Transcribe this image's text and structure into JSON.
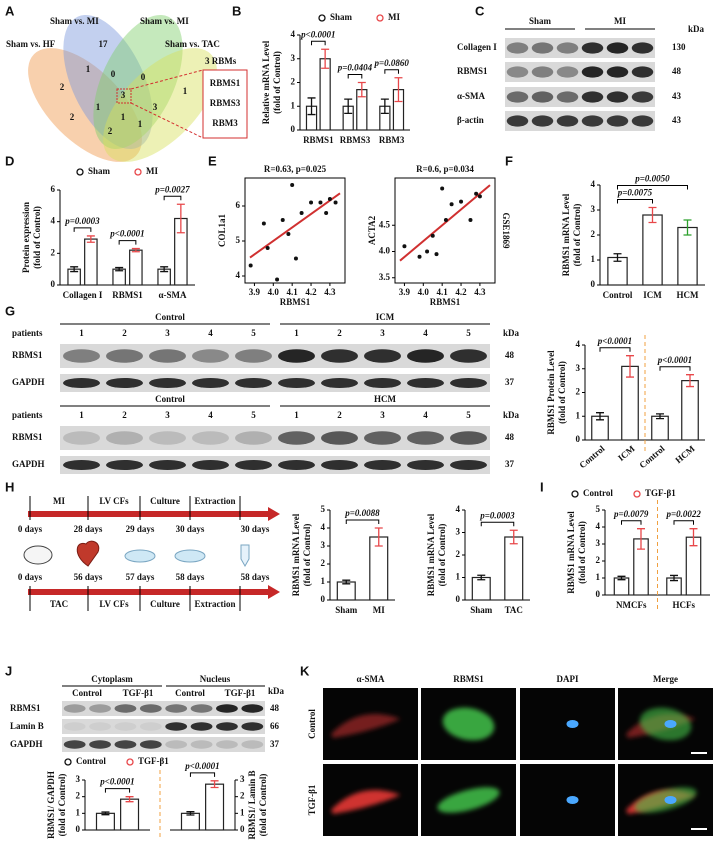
{
  "panel_labels": [
    "A",
    "B",
    "C",
    "D",
    "E",
    "F",
    "G",
    "H",
    "I",
    "J",
    "K"
  ],
  "venn": {
    "set_labels": [
      "Sham vs. MI",
      "Sham vs. MI",
      "Sham vs. HF",
      "Sham vs. TAC"
    ],
    "counts": [
      17,
      2,
      1,
      0,
      0,
      1,
      2,
      3,
      1,
      3,
      1,
      2,
      1
    ],
    "box_title": "3 RBMs",
    "genes": [
      "RBMS1",
      "RBMS3",
      "RBM3"
    ]
  },
  "blot_C": {
    "groups": [
      "Sham",
      "MI"
    ],
    "unit": "kDa",
    "rows": [
      {
        "label": "Collagen I",
        "kda": 130
      },
      {
        "label": "RBMS1",
        "kda": 48
      },
      {
        "label": "α-SMA",
        "kda": 43
      },
      {
        "label": "β-actin",
        "kda": 43
      }
    ]
  },
  "blot_G": {
    "unit": "kDa",
    "patients_label": "patients",
    "top": {
      "groups": [
        "Control",
        "ICM"
      ],
      "lanes": [
        1,
        2,
        3,
        4,
        5,
        1,
        2,
        3,
        4,
        5
      ]
    },
    "bottom": {
      "groups": [
        "Control",
        "HCM"
      ],
      "lanes": [
        1,
        2,
        3,
        4,
        5,
        1,
        2,
        3,
        4,
        5
      ]
    },
    "rows": [
      {
        "label": "RBMS1",
        "kda": 48
      },
      {
        "label": "GAPDH",
        "kda": 37
      }
    ]
  },
  "timeline": {
    "top": {
      "steps": [
        "MI",
        "LV CFs",
        "Culture",
        "Extraction"
      ],
      "days": [
        "0 days",
        "28 days",
        "29 days",
        "30 days",
        "30 days"
      ]
    },
    "bottom": {
      "steps": [
        "TAC",
        "LV CFs",
        "Culture",
        "Extraction"
      ],
      "days": [
        "0 days",
        "56 days",
        "57 days",
        "58 days",
        "58 days"
      ]
    }
  },
  "blot_J": {
    "compartments": [
      "Cytoplasm",
      "Nucleus"
    ],
    "conditions": [
      "Control",
      "TGF-β1",
      "Control",
      "TGF-β1"
    ],
    "unit": "kDa",
    "rows": [
      {
        "label": "RBMS1",
        "kda": 48
      },
      {
        "label": "Lamin B",
        "kda": 66
      },
      {
        "label": "GAPDH",
        "kda": 37
      }
    ]
  },
  "images_K": {
    "stains": [
      "α-SMA",
      "RBMS1",
      "DAPI",
      "Merge"
    ],
    "conditions": [
      "Control",
      "TGF-β1"
    ]
  },
  "chart_data": [
    {
      "type": "bar",
      "ylabel": [
        "Relative mRNA Level",
        "(fold of Control)"
      ],
      "categories": [
        "RBMS1",
        "RBMS3",
        "RBM3"
      ],
      "series": [
        {
          "name": "Sham",
          "color": "#111111",
          "values": [
            1.0,
            1.0,
            1.0
          ],
          "errors": [
            0.35,
            0.3,
            0.3
          ]
        },
        {
          "name": "MI",
          "color": "#e8474a",
          "values": [
            3.0,
            1.7,
            1.7
          ],
          "errors": [
            0.4,
            0.3,
            0.5
          ]
        }
      ],
      "ylim": [
        0,
        4
      ],
      "yticks": [
        0,
        1,
        2,
        3,
        4
      ],
      "annotations": [
        "p<0.0001",
        "p=0.0404",
        "p=0.0860"
      ]
    },
    {
      "type": "bar",
      "ylabel": [
        "Protein expression",
        "(fold of Control)"
      ],
      "categories": [
        "Collagen I",
        "RBMS1",
        "α-SMA"
      ],
      "series": [
        {
          "name": "Sham",
          "color": "#111111",
          "values": [
            1.0,
            1.0,
            1.0
          ],
          "errors": [
            0.15,
            0.1,
            0.15
          ]
        },
        {
          "name": "MI",
          "color": "#e8474a",
          "values": [
            2.9,
            2.2,
            4.2
          ],
          "errors": [
            0.2,
            0.1,
            0.9
          ]
        }
      ],
      "ylim": [
        0,
        6
      ],
      "yticks": [
        0,
        2,
        4,
        6
      ],
      "annotations": [
        "p=0.0003",
        "p<0.0001",
        "p=0.0027"
      ]
    },
    {
      "type": "scatter",
      "title": "R=0.63, p=0.025",
      "xlabel": "RBMS1",
      "ylabel": "COL1a1",
      "fit_color": "#d03030",
      "x": [
        3.88,
        3.95,
        3.97,
        4.02,
        4.05,
        4.08,
        4.1,
        4.12,
        4.15,
        4.2,
        4.25,
        4.28,
        4.3,
        4.33
      ],
      "y": [
        4.3,
        5.5,
        4.8,
        3.9,
        5.6,
        5.2,
        6.6,
        4.5,
        5.8,
        6.1,
        6.1,
        5.8,
        6.2,
        6.1
      ],
      "xlim": [
        3.85,
        4.38
      ],
      "xticks": [
        3.9,
        {
          "value": 4,
          "label": "4.0"
        },
        4.1,
        4.2,
        4.3
      ],
      "ylim": [
        3.8,
        6.8
      ],
      "yticks": [
        4,
        5,
        6
      ]
    },
    {
      "type": "scatter",
      "title": "R=0.6, p=0.034",
      "xlabel": "RBMS1",
      "ylabel": "ACTA2",
      "side_label": "GSE1869",
      "fit_color": "#d03030",
      "x": [
        3.9,
        3.98,
        4.02,
        4.05,
        4.07,
        4.1,
        4.12,
        4.15,
        4.2,
        4.25,
        4.28,
        4.3
      ],
      "y": [
        4.1,
        3.9,
        4.0,
        4.3,
        3.95,
        5.2,
        4.6,
        4.9,
        4.95,
        4.6,
        5.1,
        5.05
      ],
      "xlim": [
        3.85,
        4.38
      ],
      "xticks": [
        3.9,
        {
          "value": 4,
          "label": "4.0"
        },
        4.1,
        4.2,
        4.3
      ],
      "ylim": [
        3.4,
        5.4
      ],
      "yticks": [
        3.5,
        {
          "value": 4,
          "label": "4.0"
        },
        4.5
      ]
    },
    {
      "type": "bar",
      "ylabel": [
        "RBMS1 mRNA Level",
        "(fold of Control)"
      ],
      "categories": [
        "Control",
        "ICM",
        "HCM"
      ],
      "values": [
        1.1,
        2.8,
        2.3
      ],
      "errors": [
        0.15,
        0.3,
        0.3
      ],
      "colors": [
        "#111111",
        "#e8474a",
        "#2ca02c"
      ],
      "ylim": [
        0,
        4
      ],
      "yticks": [
        0,
        1,
        2,
        3,
        4
      ],
      "annotations": [
        "p=0.0075",
        "p=0.0050"
      ]
    },
    {
      "type": "bar",
      "ylabel": [
        "RBMS1 Protein Level",
        "(fold of Control)"
      ],
      "categories": [
        "Control",
        "ICM",
        "Control",
        "HCM"
      ],
      "values": [
        1.0,
        3.1,
        1.0,
        2.5
      ],
      "errors": [
        0.15,
        0.45,
        0.1,
        0.25
      ],
      "colors": [
        "#111111",
        "#e8474a",
        "#111111",
        "#e8474a"
      ],
      "ylim": [
        0,
        4
      ],
      "yticks": [
        0,
        1,
        2,
        3,
        4
      ],
      "annotations": [
        "p<0.0001",
        "p<0.0001"
      ]
    },
    {
      "type": "bar",
      "ylabel": [
        "RBMS1 mRNA Level",
        "(fold of Control)"
      ],
      "categories": [
        "Sham",
        "MI"
      ],
      "values": [
        1.0,
        3.5
      ],
      "errors": [
        0.1,
        0.5
      ],
      "colors": [
        "#111111",
        "#e8474a"
      ],
      "ylim": [
        0,
        5
      ],
      "yticks": [
        0,
        1,
        2,
        3,
        4,
        5
      ],
      "annotations": [
        "p=0.0088"
      ]
    },
    {
      "type": "bar",
      "ylabel": [
        "RBMS1 mRNA Level",
        "(fold of Control)"
      ],
      "categories": [
        "Sham",
        "TAC"
      ],
      "values": [
        1.0,
        2.8
      ],
      "errors": [
        0.1,
        0.3
      ],
      "colors": [
        "#111111",
        "#e8474a"
      ],
      "ylim": [
        0,
        4
      ],
      "yticks": [
        0,
        1,
        2,
        3,
        4
      ],
      "annotations": [
        "p=0.0003"
      ]
    },
    {
      "type": "bar",
      "ylabel": [
        "RBMS1 mRNA Level",
        "(fold of Control)"
      ],
      "categories": [
        "NMCFs",
        "HCFs"
      ],
      "series": [
        {
          "name": "Control",
          "color": "#111111",
          "values": [
            1.0,
            1.0
          ],
          "errors": [
            0.1,
            0.15
          ]
        },
        {
          "name": "TGF-β1",
          "color": "#e8474a",
          "values": [
            3.3,
            3.4
          ],
          "errors": [
            0.6,
            0.5
          ]
        }
      ],
      "ylim": [
        0,
        5
      ],
      "yticks": [
        0,
        1,
        2,
        3,
        4,
        5
      ],
      "annotations": [
        "p=0.0079",
        "p=0.0022"
      ]
    },
    {
      "type": "bar",
      "ylabel": [
        "RBMS1/ GAPDH",
        "(fold of Control)"
      ],
      "categories": [
        null
      ],
      "series": [
        {
          "name": "Control",
          "color": "#111111",
          "values": [
            1.0
          ],
          "errors": [
            0.08
          ]
        },
        {
          "name": "TGF-β1",
          "color": "#e8474a",
          "values": [
            1.85
          ],
          "errors": [
            0.15
          ]
        }
      ],
      "ylim": [
        0,
        3
      ],
      "yticks": [
        0,
        1,
        2,
        3
      ],
      "annotations": [
        "p<0.0001"
      ]
    },
    {
      "type": "bar",
      "ylabel": [
        "RBMS1/ Lamin B",
        "(fold of Control)"
      ],
      "categories": [
        null
      ],
      "series": [
        {
          "color": "#111111",
          "values": [
            1.0
          ],
          "errors": [
            0.1
          ]
        },
        {
          "color": "#e8474a",
          "values": [
            2.75
          ],
          "errors": [
            0.2
          ]
        }
      ],
      "ylim": [
        0,
        3
      ],
      "yticks": [
        0,
        1,
        2,
        3
      ],
      "annotations": [
        "p<0.0001"
      ]
    }
  ]
}
